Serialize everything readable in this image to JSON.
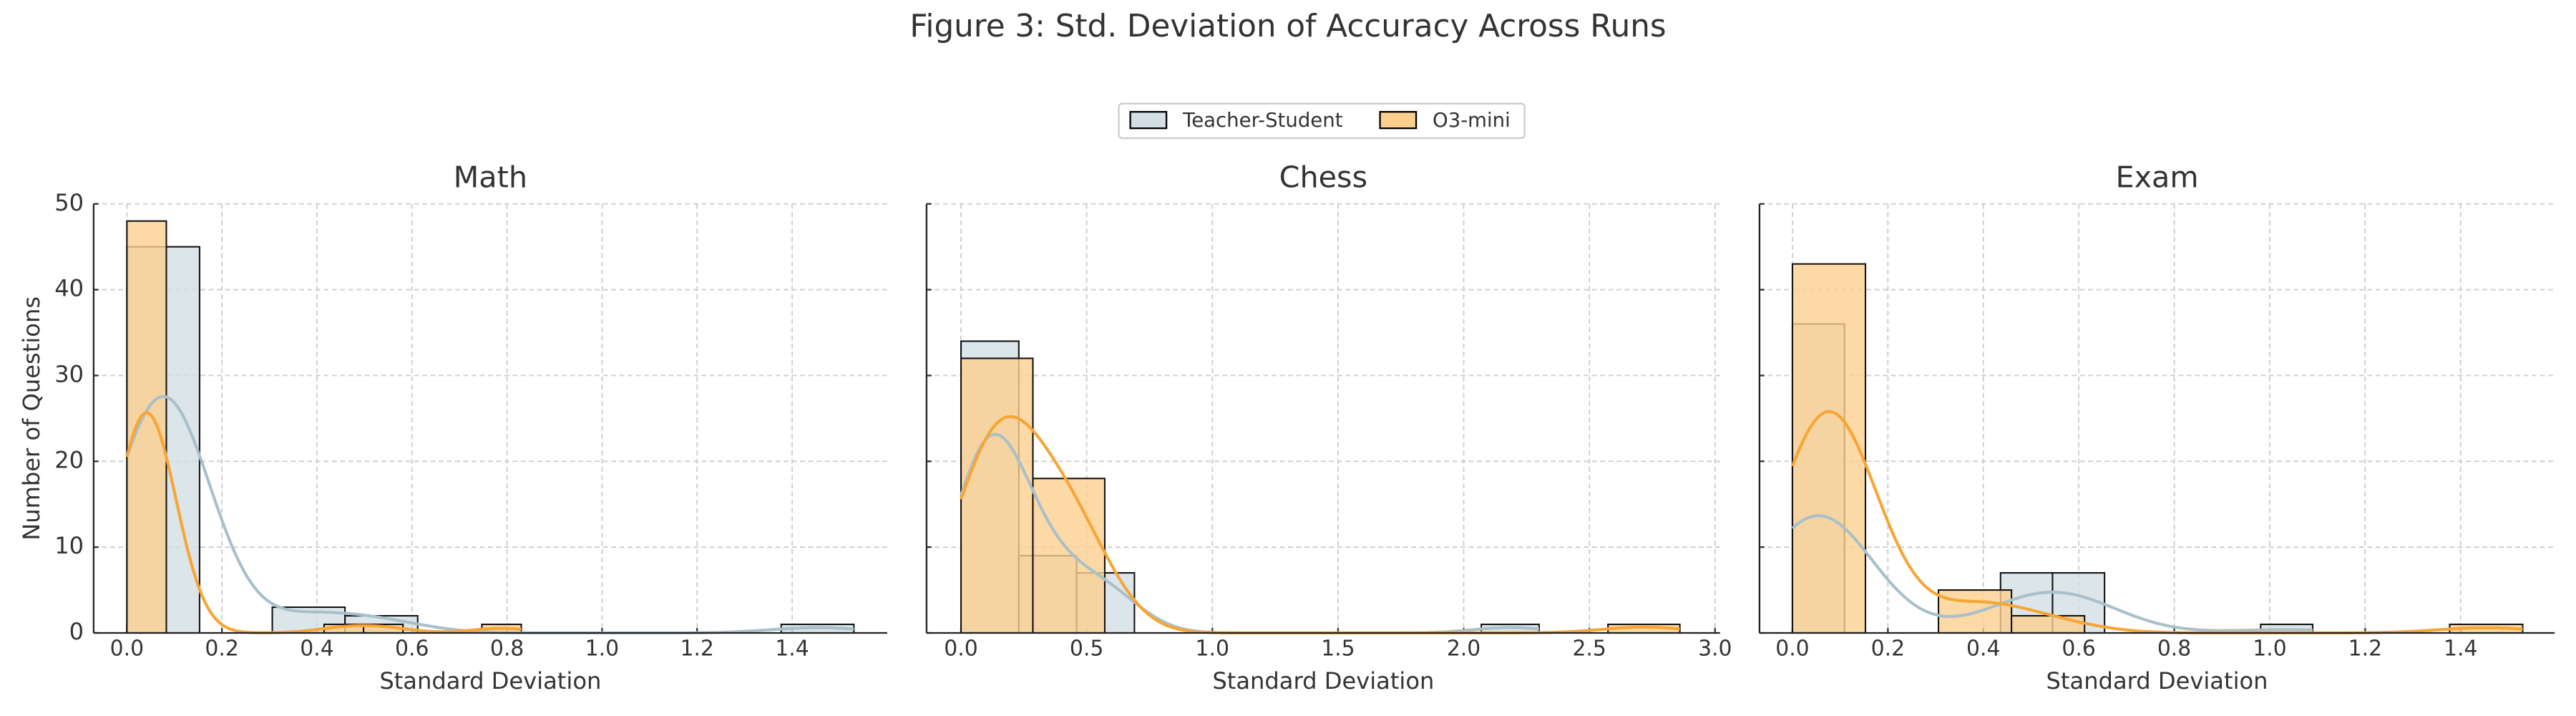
{
  "title": "Figure 3: Std. Deviation of Accuracy Across Runs",
  "chart_data": [
    {
      "type": "histogram",
      "title": "Math",
      "xlabel": "Standard Deviation",
      "ylabel": "Number of Questions",
      "xlim": [
        -0.07,
        1.6
      ],
      "ylim": [
        0,
        50
      ],
      "xticks": [
        {
          "value": 0,
          "label": "0.0"
        },
        0.2,
        0.4,
        0.6,
        0.8,
        {
          "value": 1,
          "label": "1.0"
        },
        1.2,
        1.4
      ],
      "yticks": [
        0,
        10,
        20,
        30,
        40,
        50
      ],
      "ytick_labels": true,
      "grid": true,
      "series": [
        {
          "name": "Teacher-Student",
          "color": "#d3dfe5",
          "line_color": "#a9c0ca",
          "bins": [
            0,
            0.153,
            0.306,
            0.459,
            0.612,
            0.765,
            0.918,
            1.071,
            1.224,
            1.377,
            1.53
          ],
          "values": [
            45,
            0,
            3,
            2,
            0,
            0,
            0,
            0,
            0,
            1
          ]
        },
        {
          "name": "O3-mini",
          "color": "#fdcf8f",
          "line_color": "#f7a535",
          "bins": [
            0,
            0.083,
            0.166,
            0.249,
            0.332,
            0.415,
            0.498,
            0.581,
            0.664,
            0.747,
            0.83
          ],
          "values": [
            48,
            0,
            0,
            0,
            0,
            1,
            1,
            0,
            0,
            1
          ]
        }
      ]
    },
    {
      "type": "histogram",
      "title": "Chess",
      "xlabel": "Standard Deviation",
      "xlim": [
        -0.137,
        3.02
      ],
      "ylim": [
        0,
        50
      ],
      "xticks": [
        {
          "value": 0,
          "label": "0.0"
        },
        0.5,
        {
          "value": 1,
          "label": "1.0"
        },
        1.5,
        {
          "value": 2,
          "label": "2.0"
        },
        2.5,
        {
          "value": 3,
          "label": "3.0"
        }
      ],
      "yticks": [
        0,
        10,
        20,
        30,
        40,
        50
      ],
      "ytick_labels": false,
      "grid": true,
      "series": [
        {
          "name": "Teacher-Student",
          "color": "#d3dfe5",
          "line_color": "#a9c0ca",
          "bins": [
            0,
            0.23,
            0.46,
            0.69,
            0.92,
            1.15,
            1.38,
            1.61,
            1.84,
            2.07,
            2.3
          ],
          "values": [
            34,
            9,
            7,
            0,
            0,
            0,
            0,
            0,
            0,
            1
          ]
        },
        {
          "name": "O3-mini",
          "color": "#fdcf8f",
          "line_color": "#f7a535",
          "bins": [
            0,
            0.286,
            0.572,
            0.858,
            1.144,
            1.43,
            1.716,
            2.002,
            2.288,
            2.574,
            2.86
          ],
          "values": [
            32,
            18,
            0,
            0,
            0,
            0,
            0,
            0,
            0,
            1
          ]
        }
      ]
    },
    {
      "type": "histogram",
      "title": "Exam",
      "xlabel": "Standard Deviation",
      "xlim": [
        -0.069,
        1.597
      ],
      "ylim": [
        0,
        50
      ],
      "xticks": [
        {
          "value": 0,
          "label": "0.0"
        },
        0.2,
        0.4,
        0.6,
        0.8,
        {
          "value": 1,
          "label": "1.0"
        },
        1.2,
        1.4
      ],
      "yticks": [
        0,
        10,
        20,
        30,
        40,
        50
      ],
      "ytick_labels": false,
      "grid": true,
      "series": [
        {
          "name": "Teacher-Student",
          "color": "#d3dfe5",
          "line_color": "#a9c0ca",
          "bins": [
            0,
            0.109,
            0.218,
            0.327,
            0.436,
            0.545,
            0.654,
            0.763,
            0.872,
            0.981,
            1.09
          ],
          "values": [
            36,
            0,
            0,
            0,
            7,
            7,
            0,
            0,
            0,
            1
          ]
        },
        {
          "name": "O3-mini",
          "color": "#fdcf8f",
          "line_color": "#f7a535",
          "bins": [
            0,
            0.153,
            0.306,
            0.459,
            0.612,
            0.765,
            0.918,
            1.071,
            1.224,
            1.377,
            1.53
          ],
          "values": [
            43,
            0,
            5,
            2,
            0,
            0,
            0,
            0,
            0,
            1
          ]
        }
      ]
    }
  ]
}
